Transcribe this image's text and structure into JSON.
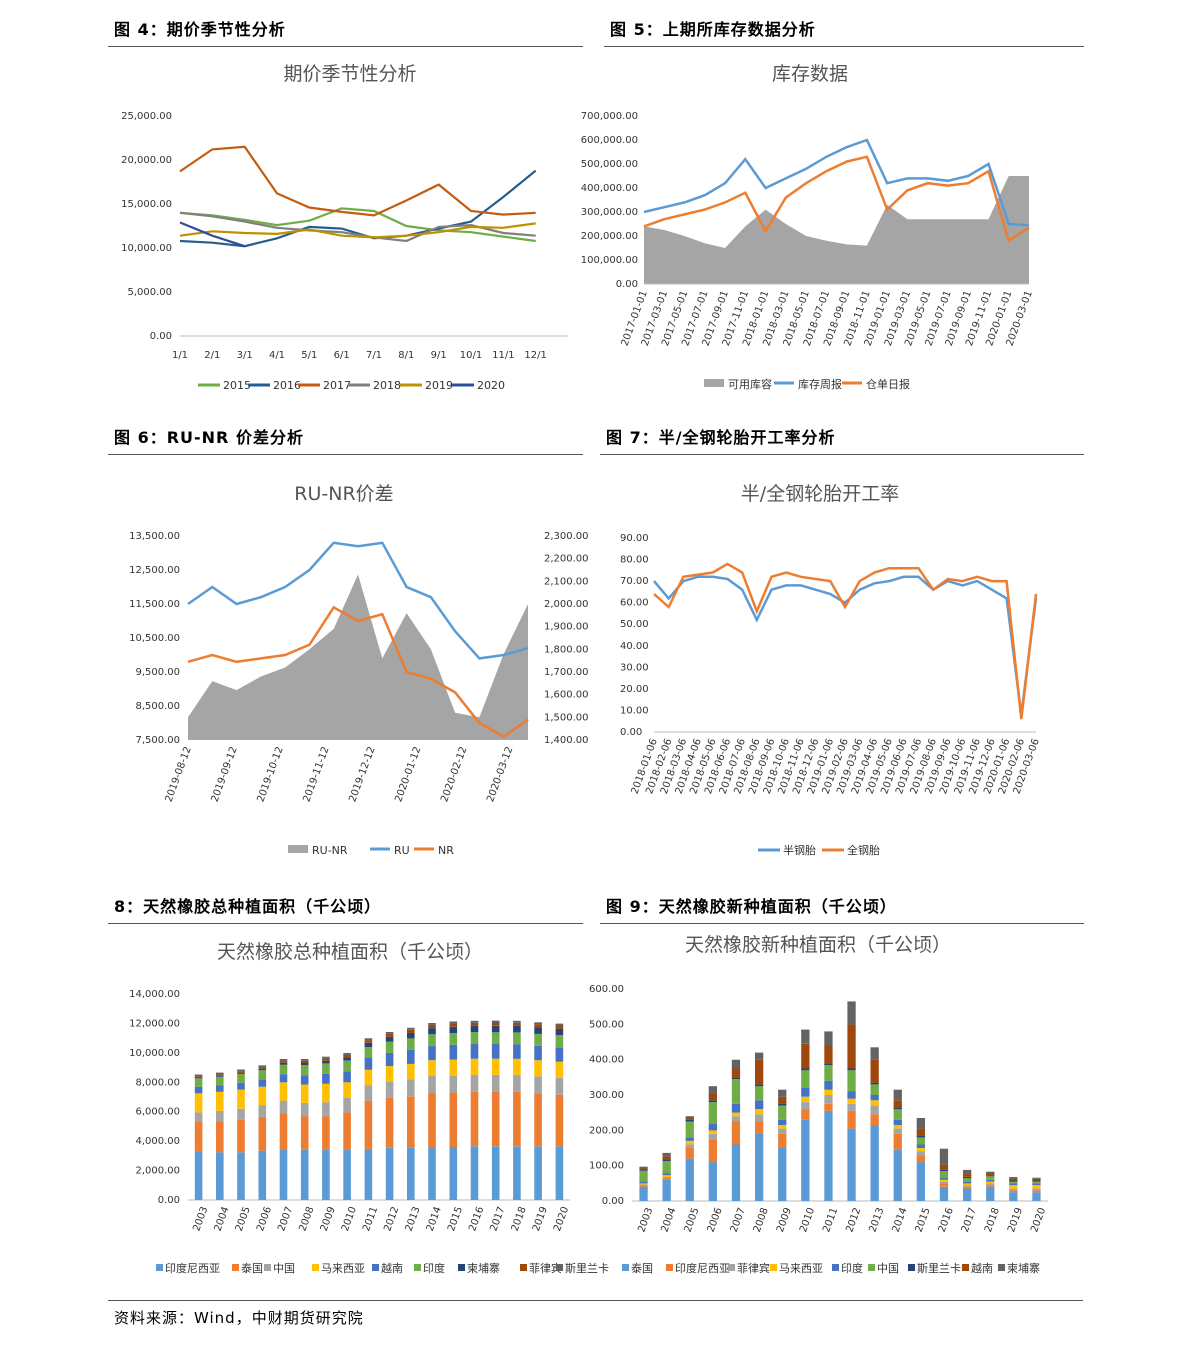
{
  "headers": {
    "fig4": "图 4：期价季节性分析",
    "fig5": "图 5：上期所库存数据分析",
    "fig6": "图 6：RU-NR 价差分析",
    "fig7": "图 7：半/全钢轮胎开工率分析",
    "fig8": "8：天然橡胶总种植面积（千公顷）",
    "fig9": "图 9：天然橡胶新种植面积（千公顷）"
  },
  "source": "资料来源：Wind，中财期货研究院",
  "chart_data": [
    {
      "id": "c4",
      "type": "line",
      "title": "期价季节性分析",
      "x_ticks": [
        "1/1",
        "2/1",
        "3/1",
        "4/1",
        "5/1",
        "6/1",
        "7/1",
        "8/1",
        "9/1",
        "10/1",
        "11/1",
        "12/1"
      ],
      "y_ticks": [
        "25,000.00",
        "20,000.00",
        "15,000.00",
        "10,000.00",
        "5,000.00",
        "0.00"
      ],
      "ylim": [
        0,
        25000
      ],
      "legend_position": "bottom",
      "series": [
        {
          "name": "2015",
          "color": "#70ad47",
          "values": [
            14000,
            13700,
            13200,
            12600,
            13100,
            14500,
            14200,
            12500,
            12000,
            11800,
            11300,
            10800
          ]
        },
        {
          "name": "2016",
          "color": "#255e91",
          "values": [
            10800,
            10600,
            10200,
            11100,
            12400,
            12200,
            11100,
            11400,
            12200,
            13000,
            15800,
            18800
          ]
        },
        {
          "name": "2017",
          "color": "#c55a11",
          "values": [
            18700,
            21200,
            21500,
            16200,
            14600,
            14100,
            13700,
            15400,
            17200,
            14200,
            13800,
            14000
          ]
        },
        {
          "name": "2018",
          "color": "#7f7f7f",
          "values": [
            14000,
            13600,
            13000,
            12300,
            12000,
            11800,
            11200,
            10800,
            12400,
            12600,
            11700,
            11400
          ]
        },
        {
          "name": "2019",
          "color": "#bf9000",
          "values": [
            11400,
            11900,
            11700,
            11600,
            12100,
            11400,
            11200,
            11400,
            11800,
            12400,
            12300,
            12800
          ]
        },
        {
          "name": "2020",
          "color": "#2f4d99",
          "values": [
            12900,
            11400,
            10200
          ]
        }
      ]
    },
    {
      "id": "c5",
      "type": "line",
      "title": "库存数据",
      "x_ticks": [
        "2017-01-01",
        "2017-03-01",
        "2017-05-01",
        "2017-07-01",
        "2017-09-01",
        "2017-11-01",
        "2018-01-01",
        "2018-03-01",
        "2018-05-01",
        "2018-07-01",
        "2018-09-01",
        "2018-11-01",
        "2019-01-01",
        "2019-03-01",
        "2019-05-01",
        "2019-07-01",
        "2019-09-01",
        "2019-11-01",
        "2020-01-01",
        "2020-03-01"
      ],
      "y_ticks": [
        "700,000.00",
        "600,000.00",
        "500,000.00",
        "400,000.00",
        "300,000.00",
        "200,000.00",
        "100,000.00",
        "0.00"
      ],
      "ylim": [
        0,
        700000
      ],
      "legend_position": "bottom",
      "series": [
        {
          "name": "可用库容",
          "color": "#a5a5a5",
          "values": [
            240000,
            225000,
            200000,
            170000,
            150000,
            240000,
            310000,
            250000,
            200000,
            180000,
            165000,
            160000,
            330000,
            270000,
            270000,
            270000,
            270000,
            270000,
            450000,
            450000
          ]
        },
        {
          "name": "库存周报",
          "color": "#5b9bd5",
          "values": [
            300000,
            320000,
            340000,
            370000,
            420000,
            520000,
            400000,
            440000,
            480000,
            530000,
            570000,
            600000,
            420000,
            440000,
            440000,
            430000,
            450000,
            500000,
            250000,
            245000
          ]
        },
        {
          "name": "仓单日报",
          "color": "#ed7d31",
          "values": [
            240000,
            270000,
            290000,
            310000,
            340000,
            380000,
            220000,
            360000,
            420000,
            470000,
            510000,
            530000,
            310000,
            390000,
            420000,
            410000,
            420000,
            470000,
            180000,
            235000
          ]
        }
      ]
    },
    {
      "id": "c6",
      "type": "area",
      "title": "RU-NR价差",
      "x_ticks": [
        "2019-08-12",
        "2019-09-12",
        "2019-10-12",
        "2019-11-12",
        "2019-12-12",
        "2020-01-12",
        "2020-02-12",
        "2020-03-12"
      ],
      "y_ticks": [
        "13,500.00",
        "12,500.00",
        "11,500.00",
        "10,500.00",
        "9,500.00",
        "8,500.00",
        "7,500.00"
      ],
      "y2_ticks": [
        "2,300.00",
        "2,200.00",
        "2,100.00",
        "2,000.00",
        "1,900.00",
        "1,800.00",
        "1,700.00",
        "1,600.00",
        "1,500.00",
        "1,400.00"
      ],
      "ylim": [
        7500,
        13500
      ],
      "y2lim": [
        1400,
        2300
      ],
      "legend_position": "bottom",
      "series": [
        {
          "name": "RU-NR",
          "color": "#a5a5a5",
          "axis": "right",
          "values": [
            1500,
            1660,
            1620,
            1680,
            1720,
            1800,
            1890,
            2130,
            1760,
            1960,
            1800,
            1520,
            1500,
            1780,
            2000
          ]
        },
        {
          "name": "RU",
          "color": "#5b9bd5",
          "axis": "left",
          "values": [
            11500,
            12000,
            11500,
            11700,
            12000,
            12500,
            13300,
            13200,
            13300,
            12000,
            11700,
            10700,
            9900,
            10000,
            10200
          ]
        },
        {
          "name": "NR",
          "color": "#ed7d31",
          "axis": "left",
          "values": [
            9800,
            10000,
            9800,
            9900,
            10000,
            10300,
            11400,
            11000,
            11200,
            9500,
            9300,
            8900,
            8000,
            7600,
            8100
          ]
        }
      ]
    },
    {
      "id": "c7",
      "type": "line",
      "title": "半/全钢轮胎开工率",
      "x_ticks": [
        "2018-01-06",
        "2018-02-06",
        "2018-03-06",
        "2018-04-06",
        "2018-05-06",
        "2018-06-06",
        "2018-07-06",
        "2018-08-06",
        "2018-09-06",
        "2018-10-06",
        "2018-11-06",
        "2018-12-06",
        "2019-01-06",
        "2019-02-06",
        "2019-03-06",
        "2019-04-06",
        "2019-05-06",
        "2019-06-06",
        "2019-07-06",
        "2019-08-06",
        "2019-09-06",
        "2019-10-06",
        "2019-11-06",
        "2019-12-06",
        "2020-01-06",
        "2020-02-06",
        "2020-03-06"
      ],
      "y_ticks": [
        "90.00",
        "80.00",
        "70.00",
        "60.00",
        "50.00",
        "40.00",
        "30.00",
        "20.00",
        "10.00",
        "0.00"
      ],
      "ylim": [
        0,
        90
      ],
      "legend_position": "bottom",
      "series": [
        {
          "name": "半钢胎",
          "color": "#5b9bd5",
          "values": [
            70,
            62,
            70,
            72,
            72,
            71,
            66,
            52,
            66,
            68,
            68,
            66,
            64,
            60,
            66,
            69,
            70,
            72,
            72,
            66,
            70,
            68,
            70,
            66,
            62,
            8,
            62
          ]
        },
        {
          "name": "全钢胎",
          "color": "#ed7d31",
          "values": [
            64,
            58,
            72,
            73,
            74,
            78,
            74,
            56,
            72,
            74,
            72,
            71,
            70,
            58,
            70,
            74,
            76,
            76,
            76,
            66,
            71,
            70,
            72,
            70,
            70,
            6,
            64
          ]
        }
      ]
    },
    {
      "id": "c8",
      "type": "bar",
      "stacked": true,
      "title": "天然橡胶总种植面积（千公顷）",
      "categories": [
        "2003",
        "2004",
        "2005",
        "2006",
        "2007",
        "2008",
        "2009",
        "2010",
        "2011",
        "2012",
        "2013",
        "2014",
        "2015",
        "2016",
        "2017",
        "2018",
        "2019",
        "2020"
      ],
      "y_ticks": [
        "14,000.00",
        "12,000.00",
        "10,000.00",
        "8,000.00",
        "6,000.00",
        "4,000.00",
        "2,000.00",
        "0.00"
      ],
      "ylim": [
        0,
        14000
      ],
      "legend_position": "bottom",
      "series": [
        {
          "name": "印度尼西亚",
          "color": "#5b9bd5",
          "values": [
            3300,
            3250,
            3250,
            3350,
            3400,
            3400,
            3400,
            3450,
            3450,
            3550,
            3550,
            3600,
            3600,
            3650,
            3650,
            3650,
            3650,
            3650
          ]
        },
        {
          "name": "泰国",
          "color": "#ed7d31",
          "values": [
            2000,
            2100,
            2200,
            2300,
            2500,
            2300,
            2300,
            2500,
            3300,
            3400,
            3500,
            3700,
            3700,
            3700,
            3700,
            3700,
            3600,
            3500
          ]
        },
        {
          "name": "中国",
          "color": "#a5a5a5",
          "values": [
            650,
            700,
            750,
            800,
            850,
            900,
            950,
            1000,
            1050,
            1100,
            1150,
            1150,
            1150,
            1150,
            1150,
            1150,
            1150,
            1150
          ]
        },
        {
          "name": "马来西亚",
          "color": "#ffc000",
          "values": [
            1300,
            1300,
            1300,
            1250,
            1250,
            1250,
            1250,
            1050,
            1050,
            1050,
            1050,
            1050,
            1100,
            1100,
            1100,
            1100,
            1100,
            1100
          ]
        },
        {
          "name": "越南",
          "color": "#4472c4",
          "values": [
            450,
            450,
            470,
            500,
            550,
            630,
            680,
            750,
            800,
            900,
            950,
            980,
            1000,
            1000,
            1000,
            990,
            980,
            980
          ]
        },
        {
          "name": "印度",
          "color": "#70ad47",
          "values": [
            570,
            580,
            600,
            620,
            650,
            680,
            700,
            720,
            750,
            760,
            780,
            780,
            800,
            800,
            800,
            800,
            810,
            820
          ]
        },
        {
          "name": "柬埔寨",
          "color": "#264478",
          "values": [
            60,
            70,
            80,
            100,
            120,
            150,
            180,
            220,
            280,
            330,
            380,
            420,
            430,
            430,
            440,
            440,
            440,
            440
          ]
        },
        {
          "name": "菲律宾",
          "color": "#9e480e",
          "values": [
            80,
            90,
            100,
            110,
            130,
            140,
            150,
            170,
            180,
            200,
            210,
            220,
            220,
            220,
            220,
            220,
            220,
            220
          ]
        },
        {
          "name": "斯里兰卡",
          "color": "#636363",
          "values": [
            120,
            120,
            120,
            120,
            130,
            130,
            130,
            130,
            130,
            130,
            130,
            130,
            130,
            130,
            130,
            130,
            130,
            130
          ]
        }
      ]
    },
    {
      "id": "c9",
      "type": "bar",
      "stacked": true,
      "title": "天然橡胶新种植面积（千公顷）",
      "categories": [
        "2003",
        "2004",
        "2005",
        "2006",
        "2007",
        "2008",
        "2009",
        "2010",
        "2011",
        "2012",
        "2013",
        "2014",
        "2015",
        "2016",
        "2017",
        "2018",
        "2019",
        "2020"
      ],
      "y_ticks": [
        "600.00",
        "500.00",
        "400.00",
        "300.00",
        "200.00",
        "100.00",
        "0.00"
      ],
      "ylim": [
        0,
        600
      ],
      "legend_position": "bottom",
      "series": [
        {
          "name": "泰国",
          "color": "#5b9bd5",
          "values": [
            40,
            60,
            120,
            110,
            160,
            190,
            150,
            230,
            255,
            205,
            215,
            145,
            110,
            40,
            35,
            40,
            25,
            25
          ]
        },
        {
          "name": "印度尼西亚",
          "color": "#ed7d31",
          "values": [
            5,
            5,
            30,
            65,
            65,
            35,
            40,
            30,
            20,
            50,
            30,
            45,
            20,
            10,
            5,
            5,
            5,
            5
          ]
        },
        {
          "name": "菲律宾",
          "color": "#a5a5a5",
          "values": [
            2,
            3,
            10,
            15,
            15,
            20,
            15,
            20,
            25,
            20,
            25,
            15,
            10,
            5,
            5,
            5,
            5,
            5
          ]
        },
        {
          "name": "马来西亚",
          "color": "#ffc000",
          "values": [
            3,
            5,
            10,
            10,
            10,
            15,
            10,
            15,
            15,
            15,
            15,
            10,
            10,
            5,
            5,
            5,
            10,
            10
          ]
        },
        {
          "name": "印度",
          "color": "#4472c4",
          "values": [
            5,
            5,
            10,
            20,
            25,
            25,
            15,
            25,
            25,
            20,
            15,
            15,
            10,
            5,
            5,
            5,
            5,
            5
          ]
        },
        {
          "name": "中国",
          "color": "#70ad47",
          "values": [
            30,
            35,
            45,
            60,
            70,
            40,
            40,
            50,
            45,
            60,
            30,
            30,
            20,
            20,
            10,
            10,
            5,
            5
          ]
        },
        {
          "name": "斯里兰卡",
          "color": "#264478",
          "values": [
            2,
            3,
            5,
            5,
            5,
            5,
            5,
            5,
            5,
            5,
            5,
            5,
            5,
            3,
            3,
            3,
            3,
            3
          ]
        },
        {
          "name": "越南",
          "color": "#9e480e",
          "values": [
            5,
            10,
            5,
            20,
            25,
            70,
            20,
            70,
            50,
            125,
            65,
            20,
            20,
            15,
            10,
            5,
            5,
            5
          ]
        },
        {
          "name": "柬埔寨",
          "color": "#636363",
          "values": [
            5,
            10,
            5,
            20,
            25,
            20,
            20,
            40,
            40,
            65,
            35,
            30,
            30,
            45,
            10,
            5,
            5,
            3
          ]
        }
      ]
    }
  ]
}
